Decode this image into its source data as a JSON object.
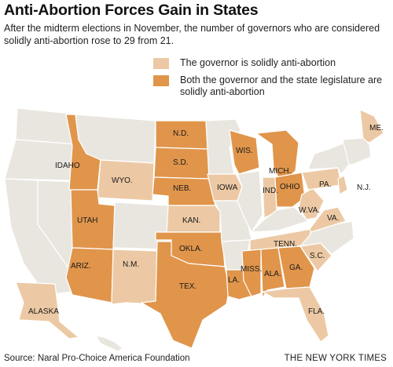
{
  "header": {
    "title": "Anti-Abortion Forces Gain in States",
    "subtitle": "After the midterm elections in November, the number of governors who are considered solidly anti-abortion rose to 29 from 21."
  },
  "colors": {
    "governor_only": "#ecc9a4",
    "governor_and_legislature": "#e0954b",
    "neutral": "#e9e6df",
    "border": "#ffffff"
  },
  "legend": [
    {
      "category": "governor_only",
      "label": "The governor is solidly anti-abortion"
    },
    {
      "category": "governor_and_legislature",
      "label": "Both the governor and the state legislature are solidly anti-abortion"
    }
  ],
  "states": [
    {
      "name": "WA",
      "category": "neutral",
      "label": ""
    },
    {
      "name": "OR",
      "category": "neutral",
      "label": ""
    },
    {
      "name": "CA",
      "category": "neutral",
      "label": ""
    },
    {
      "name": "NV",
      "category": "neutral",
      "label": ""
    },
    {
      "name": "ID",
      "category": "governor_and_legislature",
      "label": "IDAHO"
    },
    {
      "name": "MT",
      "category": "neutral",
      "label": ""
    },
    {
      "name": "WY",
      "category": "governor_only",
      "label": "WYO."
    },
    {
      "name": "UT",
      "category": "governor_and_legislature",
      "label": "UTAH"
    },
    {
      "name": "AZ",
      "category": "governor_and_legislature",
      "label": "ARIZ."
    },
    {
      "name": "CO",
      "category": "neutral",
      "label": ""
    },
    {
      "name": "NM",
      "category": "governor_only",
      "label": "N.M."
    },
    {
      "name": "ND",
      "category": "governor_and_legislature",
      "label": "N.D."
    },
    {
      "name": "SD",
      "category": "governor_and_legislature",
      "label": "S.D."
    },
    {
      "name": "NE",
      "category": "governor_and_legislature",
      "label": "NEB."
    },
    {
      "name": "KS",
      "category": "governor_only",
      "label": "KAN."
    },
    {
      "name": "OK",
      "category": "governor_and_legislature",
      "label": "OKLA."
    },
    {
      "name": "TX",
      "category": "governor_and_legislature",
      "label": "TEX."
    },
    {
      "name": "MN",
      "category": "neutral",
      "label": ""
    },
    {
      "name": "IA",
      "category": "governor_only",
      "label": "IOWA"
    },
    {
      "name": "MO",
      "category": "neutral",
      "label": ""
    },
    {
      "name": "AR",
      "category": "neutral",
      "label": ""
    },
    {
      "name": "LA",
      "category": "governor_and_legislature",
      "label": "LA."
    },
    {
      "name": "WI",
      "category": "governor_and_legislature",
      "label": "WIS."
    },
    {
      "name": "IL",
      "category": "neutral",
      "label": ""
    },
    {
      "name": "MI",
      "category": "governor_and_legislature",
      "label": "MICH."
    },
    {
      "name": "IN",
      "category": "governor_only",
      "label": "IND."
    },
    {
      "name": "OH",
      "category": "governor_and_legislature",
      "label": "OHIO"
    },
    {
      "name": "KY",
      "category": "neutral",
      "label": ""
    },
    {
      "name": "TN",
      "category": "governor_only",
      "label": "TENN."
    },
    {
      "name": "MS",
      "category": "governor_and_legislature",
      "label": "MISS."
    },
    {
      "name": "AL",
      "category": "governor_and_legislature",
      "label": "ALA."
    },
    {
      "name": "GA",
      "category": "governor_and_legislature",
      "label": "GA."
    },
    {
      "name": "FL",
      "category": "governor_only",
      "label": "FLA."
    },
    {
      "name": "SC",
      "category": "governor_only",
      "label": "S.C."
    },
    {
      "name": "NC",
      "category": "neutral",
      "label": ""
    },
    {
      "name": "VA",
      "category": "governor_only",
      "label": "VA."
    },
    {
      "name": "WV",
      "category": "governor_only",
      "label": "W.VA."
    },
    {
      "name": "PA",
      "category": "governor_only",
      "label": "PA."
    },
    {
      "name": "NY",
      "category": "neutral",
      "label": ""
    },
    {
      "name": "NJ",
      "category": "governor_only",
      "label": "N.J."
    },
    {
      "name": "ME",
      "category": "governor_only",
      "label": "ME."
    },
    {
      "name": "NE-states",
      "category": "neutral",
      "label": ""
    },
    {
      "name": "AK",
      "category": "governor_only",
      "label": "ALASKA"
    },
    {
      "name": "HI",
      "category": "neutral",
      "label": ""
    }
  ],
  "footer": {
    "source": "Source: Naral Pro-Choice America Foundation",
    "credit": "THE NEW YORK TIMES"
  }
}
